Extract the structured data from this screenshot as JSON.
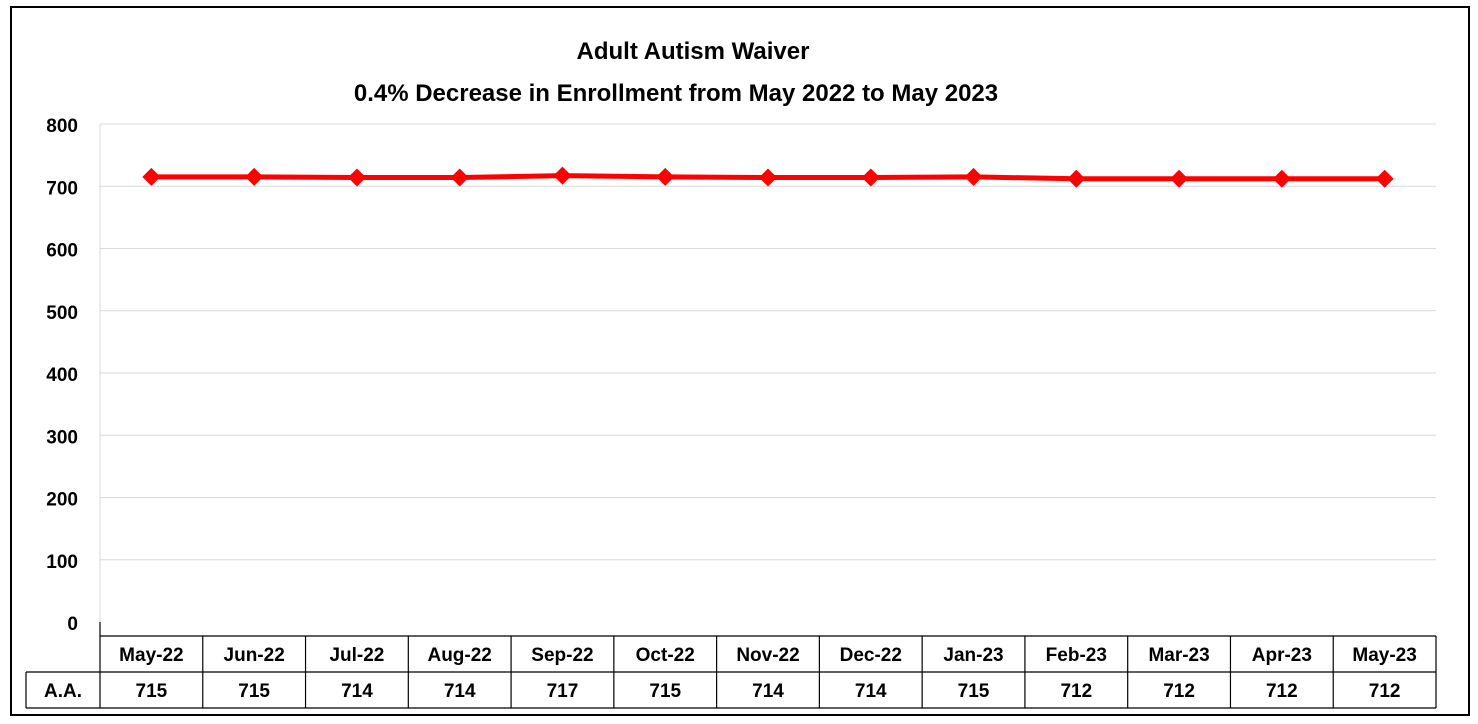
{
  "chart_data": {
    "type": "line",
    "title": "Adult Autism Waiver",
    "subtitle": "0.4% Decrease in Enrollment from May 2022 to May 2023",
    "categories": [
      "May-22",
      "Jun-22",
      "Jul-22",
      "Aug-22",
      "Sep-22",
      "Oct-22",
      "Nov-22",
      "Dec-22",
      "Jan-23",
      "Feb-23",
      "Mar-23",
      "Apr-23",
      "May-23"
    ],
    "series": [
      {
        "name": "A.A.",
        "values": [
          715,
          715,
          714,
          714,
          717,
          715,
          714,
          714,
          715,
          712,
          712,
          712,
          712
        ]
      }
    ],
    "ylim": [
      0,
      800
    ],
    "yticks": [
      0,
      100,
      200,
      300,
      400,
      500,
      600,
      700,
      800
    ],
    "grid": true,
    "legend": "data table",
    "data_table": true,
    "colors": {
      "line": "#ff0000",
      "marker": "#ff0000",
      "grid": "#d9d9d9",
      "axis": "#000000"
    }
  }
}
